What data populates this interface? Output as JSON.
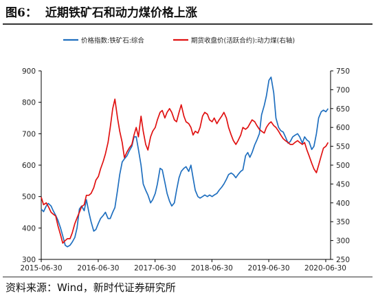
{
  "figure": {
    "number": "图6：",
    "title": "近期铁矿石和动力煤价格上涨",
    "source": "资料来源：Wind，新时代证券研究所"
  },
  "chart_data": {
    "type": "line",
    "x_ticks": [
      "2015-06-30",
      "2016-06-30",
      "2017-06-30",
      "2018-06-30",
      "2019-06-30",
      "2020-06-30"
    ],
    "x_range": [
      "2015-06-30",
      "2020-07-31"
    ],
    "y_left": {
      "ylim": [
        300,
        900
      ],
      "ticks": [
        300,
        400,
        500,
        600,
        700,
        800,
        900
      ]
    },
    "y_right": {
      "ylim": [
        250,
        750
      ],
      "ticks": [
        250,
        300,
        350,
        400,
        450,
        500,
        550,
        600,
        650,
        700,
        750
      ]
    },
    "legend_position": "top",
    "series": [
      {
        "name": "价格指数:铁矿石:综合",
        "axis": "left",
        "color": "#1f6fbf",
        "points": [
          [
            "2015-06-30",
            460
          ],
          [
            "2015-07-15",
            452
          ],
          [
            "2015-08-01",
            470
          ],
          [
            "2015-08-15",
            478
          ],
          [
            "2015-09-01",
            470
          ],
          [
            "2015-09-15",
            455
          ],
          [
            "2015-10-01",
            440
          ],
          [
            "2015-10-15",
            425
          ],
          [
            "2015-11-01",
            400
          ],
          [
            "2015-11-15",
            375
          ],
          [
            "2015-12-01",
            345
          ],
          [
            "2015-12-15",
            340
          ],
          [
            "2016-01-01",
            345
          ],
          [
            "2016-01-15",
            355
          ],
          [
            "2016-02-01",
            370
          ],
          [
            "2016-02-15",
            400
          ],
          [
            "2016-03-01",
            460
          ],
          [
            "2016-03-15",
            470
          ],
          [
            "2016-04-01",
            455
          ],
          [
            "2016-04-15",
            490
          ],
          [
            "2016-05-01",
            450
          ],
          [
            "2016-05-15",
            420
          ],
          [
            "2016-06-01",
            390
          ],
          [
            "2016-06-15",
            395
          ],
          [
            "2016-07-01",
            415
          ],
          [
            "2016-07-15",
            430
          ],
          [
            "2016-08-01",
            440
          ],
          [
            "2016-08-15",
            450
          ],
          [
            "2016-09-01",
            430
          ],
          [
            "2016-09-15",
            430
          ],
          [
            "2016-10-01",
            450
          ],
          [
            "2016-10-15",
            465
          ],
          [
            "2016-11-01",
            520
          ],
          [
            "2016-11-15",
            570
          ],
          [
            "2016-12-01",
            610
          ],
          [
            "2016-12-15",
            620
          ],
          [
            "2017-01-01",
            630
          ],
          [
            "2017-01-15",
            645
          ],
          [
            "2017-02-01",
            660
          ],
          [
            "2017-02-15",
            690
          ],
          [
            "2017-03-01",
            690
          ],
          [
            "2017-03-15",
            650
          ],
          [
            "2017-04-01",
            600
          ],
          [
            "2017-04-15",
            540
          ],
          [
            "2017-05-01",
            520
          ],
          [
            "2017-05-15",
            505
          ],
          [
            "2017-06-01",
            480
          ],
          [
            "2017-06-15",
            490
          ],
          [
            "2017-07-01",
            510
          ],
          [
            "2017-07-15",
            540
          ],
          [
            "2017-08-01",
            590
          ],
          [
            "2017-08-15",
            585
          ],
          [
            "2017-09-01",
            545
          ],
          [
            "2017-09-15",
            510
          ],
          [
            "2017-10-01",
            485
          ],
          [
            "2017-10-15",
            470
          ],
          [
            "2017-11-01",
            480
          ],
          [
            "2017-11-15",
            520
          ],
          [
            "2017-12-01",
            560
          ],
          [
            "2017-12-15",
            580
          ],
          [
            "2018-01-01",
            590
          ],
          [
            "2018-01-15",
            595
          ],
          [
            "2018-02-01",
            580
          ],
          [
            "2018-02-15",
            600
          ],
          [
            "2018-03-01",
            560
          ],
          [
            "2018-03-15",
            520
          ],
          [
            "2018-04-01",
            500
          ],
          [
            "2018-04-15",
            495
          ],
          [
            "2018-05-01",
            500
          ],
          [
            "2018-05-15",
            505
          ],
          [
            "2018-06-01",
            500
          ],
          [
            "2018-06-15",
            505
          ],
          [
            "2018-07-01",
            500
          ],
          [
            "2018-07-15",
            505
          ],
          [
            "2018-08-01",
            510
          ],
          [
            "2018-08-15",
            520
          ],
          [
            "2018-09-01",
            530
          ],
          [
            "2018-09-15",
            540
          ],
          [
            "2018-10-01",
            555
          ],
          [
            "2018-10-15",
            570
          ],
          [
            "2018-11-01",
            575
          ],
          [
            "2018-11-15",
            570
          ],
          [
            "2018-12-01",
            560
          ],
          [
            "2018-12-15",
            570
          ],
          [
            "2019-01-01",
            580
          ],
          [
            "2019-01-15",
            585
          ],
          [
            "2019-02-01",
            630
          ],
          [
            "2019-02-15",
            640
          ],
          [
            "2019-03-01",
            625
          ],
          [
            "2019-03-15",
            640
          ],
          [
            "2019-04-01",
            665
          ],
          [
            "2019-04-15",
            680
          ],
          [
            "2019-05-01",
            700
          ],
          [
            "2019-05-15",
            760
          ],
          [
            "2019-06-01",
            790
          ],
          [
            "2019-06-15",
            820
          ],
          [
            "2019-07-01",
            870
          ],
          [
            "2019-07-15",
            880
          ],
          [
            "2019-08-01",
            830
          ],
          [
            "2019-08-15",
            750
          ],
          [
            "2019-09-01",
            720
          ],
          [
            "2019-09-15",
            710
          ],
          [
            "2019-10-01",
            705
          ],
          [
            "2019-10-15",
            690
          ],
          [
            "2019-11-01",
            670
          ],
          [
            "2019-11-15",
            675
          ],
          [
            "2019-12-01",
            690
          ],
          [
            "2019-12-15",
            695
          ],
          [
            "2020-01-01",
            700
          ],
          [
            "2020-01-15",
            690
          ],
          [
            "2020-02-01",
            670
          ],
          [
            "2020-02-15",
            690
          ],
          [
            "2020-03-01",
            680
          ],
          [
            "2020-03-15",
            675
          ],
          [
            "2020-04-01",
            650
          ],
          [
            "2020-04-15",
            660
          ],
          [
            "2020-05-01",
            700
          ],
          [
            "2020-05-15",
            750
          ],
          [
            "2020-06-01",
            770
          ],
          [
            "2020-06-15",
            775
          ],
          [
            "2020-07-01",
            770
          ],
          [
            "2020-07-15",
            780
          ]
        ]
      },
      {
        "name": "期货收盘价(活跃合约):动力煤(右轴)",
        "axis": "right",
        "color": "#e01010",
        "points": [
          [
            "2015-06-30",
            415
          ],
          [
            "2015-07-15",
            395
          ],
          [
            "2015-08-01",
            400
          ],
          [
            "2015-08-15",
            390
          ],
          [
            "2015-09-01",
            375
          ],
          [
            "2015-09-15",
            370
          ],
          [
            "2015-10-01",
            365
          ],
          [
            "2015-10-15",
            340
          ],
          [
            "2015-11-01",
            315
          ],
          [
            "2015-11-15",
            293
          ],
          [
            "2015-12-01",
            300
          ],
          [
            "2015-12-15",
            305
          ],
          [
            "2016-01-01",
            305
          ],
          [
            "2016-01-15",
            320
          ],
          [
            "2016-02-01",
            345
          ],
          [
            "2016-02-15",
            360
          ],
          [
            "2016-03-01",
            375
          ],
          [
            "2016-03-15",
            390
          ],
          [
            "2016-04-01",
            395
          ],
          [
            "2016-04-15",
            420
          ],
          [
            "2016-05-01",
            420
          ],
          [
            "2016-05-15",
            425
          ],
          [
            "2016-06-01",
            440
          ],
          [
            "2016-06-15",
            460
          ],
          [
            "2016-07-01",
            470
          ],
          [
            "2016-07-15",
            490
          ],
          [
            "2016-08-01",
            510
          ],
          [
            "2016-08-15",
            530
          ],
          [
            "2016-09-01",
            560
          ],
          [
            "2016-09-15",
            600
          ],
          [
            "2016-10-01",
            650
          ],
          [
            "2016-10-15",
            675
          ],
          [
            "2016-11-01",
            625
          ],
          [
            "2016-11-15",
            590
          ],
          [
            "2016-12-01",
            560
          ],
          [
            "2016-12-15",
            520
          ],
          [
            "2017-01-01",
            535
          ],
          [
            "2017-01-15",
            545
          ],
          [
            "2017-02-01",
            555
          ],
          [
            "2017-02-15",
            580
          ],
          [
            "2017-03-01",
            600
          ],
          [
            "2017-03-15",
            575
          ],
          [
            "2017-04-01",
            630
          ],
          [
            "2017-04-15",
            590
          ],
          [
            "2017-05-01",
            555
          ],
          [
            "2017-05-15",
            540
          ],
          [
            "2017-06-01",
            575
          ],
          [
            "2017-06-15",
            590
          ],
          [
            "2017-07-01",
            600
          ],
          [
            "2017-07-15",
            620
          ],
          [
            "2017-08-01",
            640
          ],
          [
            "2017-08-15",
            645
          ],
          [
            "2017-09-01",
            625
          ],
          [
            "2017-09-15",
            640
          ],
          [
            "2017-10-01",
            650
          ],
          [
            "2017-10-15",
            640
          ],
          [
            "2017-11-01",
            620
          ],
          [
            "2017-11-15",
            615
          ],
          [
            "2017-12-01",
            640
          ],
          [
            "2017-12-15",
            660
          ],
          [
            "2018-01-01",
            630
          ],
          [
            "2018-01-15",
            615
          ],
          [
            "2018-02-01",
            610
          ],
          [
            "2018-02-15",
            600
          ],
          [
            "2018-03-01",
            580
          ],
          [
            "2018-03-15",
            590
          ],
          [
            "2018-04-01",
            585
          ],
          [
            "2018-04-15",
            600
          ],
          [
            "2018-05-01",
            630
          ],
          [
            "2018-05-15",
            640
          ],
          [
            "2018-06-01",
            635
          ],
          [
            "2018-06-15",
            620
          ],
          [
            "2018-07-01",
            615
          ],
          [
            "2018-07-15",
            625
          ],
          [
            "2018-08-01",
            610
          ],
          [
            "2018-08-15",
            620
          ],
          [
            "2018-09-01",
            630
          ],
          [
            "2018-09-15",
            640
          ],
          [
            "2018-10-01",
            625
          ],
          [
            "2018-10-15",
            600
          ],
          [
            "2018-11-01",
            580
          ],
          [
            "2018-11-15",
            565
          ],
          [
            "2018-12-01",
            555
          ],
          [
            "2018-12-15",
            565
          ],
          [
            "2019-01-01",
            580
          ],
          [
            "2019-01-15",
            600
          ],
          [
            "2019-02-01",
            595
          ],
          [
            "2019-02-15",
            600
          ],
          [
            "2019-03-01",
            610
          ],
          [
            "2019-03-15",
            620
          ],
          [
            "2019-04-01",
            615
          ],
          [
            "2019-04-15",
            605
          ],
          [
            "2019-05-01",
            595
          ],
          [
            "2019-05-15",
            590
          ],
          [
            "2019-06-01",
            585
          ],
          [
            "2019-06-15",
            600
          ],
          [
            "2019-07-01",
            610
          ],
          [
            "2019-07-15",
            615
          ],
          [
            "2019-08-01",
            605
          ],
          [
            "2019-08-15",
            600
          ],
          [
            "2019-09-01",
            590
          ],
          [
            "2019-09-15",
            580
          ],
          [
            "2019-10-01",
            570
          ],
          [
            "2019-10-15",
            565
          ],
          [
            "2019-11-01",
            560
          ],
          [
            "2019-11-15",
            555
          ],
          [
            "2019-12-01",
            555
          ],
          [
            "2019-12-15",
            560
          ],
          [
            "2020-01-01",
            565
          ],
          [
            "2020-01-15",
            560
          ],
          [
            "2020-02-01",
            555
          ],
          [
            "2020-02-15",
            560
          ],
          [
            "2020-03-01",
            540
          ],
          [
            "2020-03-15",
            525
          ],
          [
            "2020-04-01",
            505
          ],
          [
            "2020-04-15",
            490
          ],
          [
            "2020-05-01",
            480
          ],
          [
            "2020-05-15",
            500
          ],
          [
            "2020-06-01",
            525
          ],
          [
            "2020-06-15",
            545
          ],
          [
            "2020-07-01",
            550
          ],
          [
            "2020-07-15",
            560
          ]
        ]
      }
    ]
  }
}
